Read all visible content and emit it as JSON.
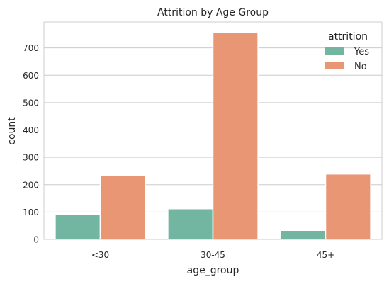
{
  "chart_data": {
    "type": "bar",
    "title": "Attrition by Age Group",
    "xlabel": "age_group",
    "ylabel": "count",
    "categories": [
      "<30",
      "30-45",
      "45+"
    ],
    "series": [
      {
        "name": "Yes",
        "values": [
          92,
          112,
          33
        ],
        "color": "#72b6a1"
      },
      {
        "name": "No",
        "values": [
          234,
          758,
          239
        ],
        "color": "#e99675"
      }
    ],
    "ylim": [
      0,
      795
    ],
    "yticks": [
      0,
      100,
      200,
      300,
      400,
      500,
      600,
      700
    ],
    "grid": true,
    "legend": {
      "title": "attrition",
      "position": "top-right"
    }
  }
}
